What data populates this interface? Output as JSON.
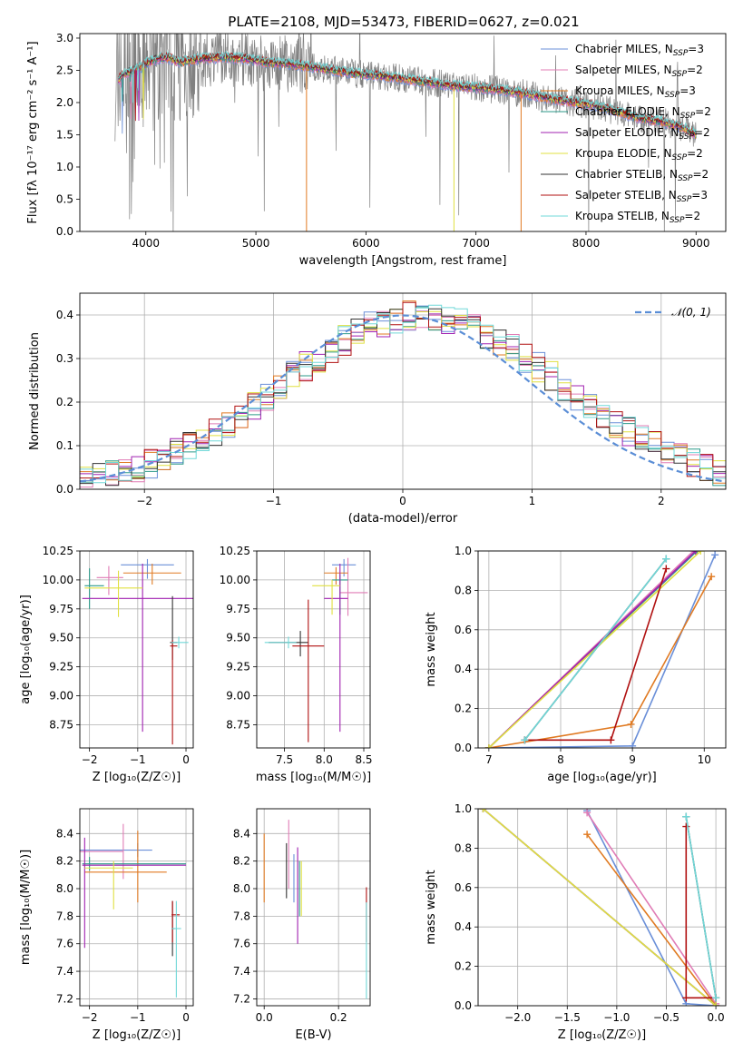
{
  "title": "PLATE=2108, MJD=53473, FIBERID=0627, z=0.021",
  "colors": {
    "chabrier_miles": "#6a8fd8",
    "salpeter_miles": "#e07cb6",
    "kroupa_miles": "#e07a22",
    "chabrier_elodie": "#2c9a8a",
    "salpeter_elodie": "#a020b0",
    "kroupa_elodie": "#e0e040",
    "chabrier_stelib": "#333333",
    "salpeter_stelib": "#b01010",
    "kroupa_stelib": "#70d8d8",
    "data": "#808080",
    "normal": "#5b8ed6"
  },
  "legend": [
    {
      "key": "chabrier_miles",
      "label": "Chabrier MILES, N",
      "sub": "SSP",
      "tail": "=3"
    },
    {
      "key": "salpeter_miles",
      "label": "Salpeter MILES, N",
      "sub": "SSP",
      "tail": "=2"
    },
    {
      "key": "kroupa_miles",
      "label": "Kroupa MILES, N",
      "sub": "SSP",
      "tail": "=3"
    },
    {
      "key": "chabrier_elodie",
      "label": "Chabrier ELODIE, N",
      "sub": "SSP",
      "tail": "=2"
    },
    {
      "key": "salpeter_elodie",
      "label": "Salpeter ELODIE, N",
      "sub": "SSP",
      "tail": "=2"
    },
    {
      "key": "kroupa_elodie",
      "label": "Kroupa ELODIE, N",
      "sub": "SSP",
      "tail": "=2"
    },
    {
      "key": "chabrier_stelib",
      "label": "Chabrier STELIB, N",
      "sub": "SSP",
      "tail": "=2"
    },
    {
      "key": "salpeter_stelib",
      "label": "Salpeter STELIB, N",
      "sub": "SSP",
      "tail": "=3"
    },
    {
      "key": "kroupa_stelib",
      "label": "Kroupa STELIB, N",
      "sub": "SSP",
      "tail": "=2"
    }
  ],
  "chart_data": [
    {
      "id": "spectrum",
      "type": "line",
      "xlabel": "wavelength [Angstrom, rest frame]",
      "ylabel": "Flux [fλ 10⁻¹⁷ erg cm⁻² s⁻¹ A⁻¹]",
      "xlim": [
        3400,
        9270
      ],
      "ylim": [
        0,
        3.07
      ],
      "xticks": [
        4000,
        5000,
        6000,
        7000,
        8000,
        9000
      ],
      "yticks": [
        0.0,
        0.5,
        1.0,
        1.5,
        2.0,
        2.5,
        3.0
      ],
      "continuum": {
        "x": [
          3750,
          3800,
          3900,
          4000,
          4100,
          4200,
          4300,
          4400,
          4500,
          4700,
          4900,
          5100,
          5300,
          5500,
          5700,
          5900,
          6100,
          6300,
          6500,
          6700,
          6900,
          7100,
          7300,
          7500,
          7700,
          7900,
          8100,
          8300,
          8500,
          8700,
          8900,
          9000
        ],
        "y": [
          2.35,
          2.45,
          2.5,
          2.6,
          2.68,
          2.7,
          2.62,
          2.65,
          2.68,
          2.7,
          2.68,
          2.62,
          2.6,
          2.55,
          2.5,
          2.45,
          2.42,
          2.38,
          2.33,
          2.28,
          2.24,
          2.22,
          2.18,
          2.12,
          2.05,
          2.0,
          1.95,
          1.85,
          1.75,
          1.7,
          1.6,
          1.5
        ]
      },
      "data_range": [
        3720,
        9000
      ],
      "model_range": [
        3750,
        9000
      ],
      "model_edge_lines": [
        {
          "key": "kroupa_miles",
          "x": 5460
        },
        {
          "key": "kroupa_miles",
          "x": 7410
        },
        {
          "key": "kroupa_elodie",
          "x": 6800
        }
      ]
    },
    {
      "id": "residuals",
      "type": "histogram",
      "xlabel": "(data-model)/error",
      "ylabel": "Normed distribution",
      "xlim": [
        -2.5,
        2.5
      ],
      "ylim": [
        0,
        0.45
      ],
      "xticks": [
        -2,
        -1,
        0,
        1,
        2
      ],
      "yticks": [
        0.0,
        0.1,
        0.2,
        0.3,
        0.4
      ],
      "bin_width": 0.1,
      "normal_label": "𝒩(0, 1)"
    },
    {
      "id": "age_vs_Z",
      "type": "errorbar",
      "xlabel": "Z [log₁₀(Z/Z☉)]",
      "ylabel": "age  [log₁₀(age/yr)]",
      "xlim": [
        -2.2,
        0.15
      ],
      "ylim": [
        8.55,
        10.25
      ],
      "xticks": [
        -2,
        -1,
        0
      ],
      "yticks": [
        8.75,
        9.0,
        9.25,
        9.5,
        9.75,
        10.0,
        10.25
      ],
      "points": [
        {
          "key": "chabrier_miles",
          "x": -0.8,
          "y": 10.13,
          "xerr": [
            0.55,
            0.55
          ],
          "yerr": [
            0.12,
            0.05
          ]
        },
        {
          "key": "salpeter_miles",
          "x": -1.6,
          "y": 10.02,
          "xerr": [
            0.25,
            0.3
          ],
          "yerr": [
            0.15,
            0.1
          ]
        },
        {
          "key": "kroupa_miles",
          "x": -0.7,
          "y": 10.06,
          "xerr": [
            0.6,
            0.6
          ],
          "yerr": [
            0.1,
            0.08
          ]
        },
        {
          "key": "chabrier_elodie",
          "x": -2.0,
          "y": 9.95,
          "xerr": [
            0.1,
            0.3
          ],
          "yerr": [
            0.2,
            0.15
          ]
        },
        {
          "key": "salpeter_elodie",
          "x": -0.9,
          "y": 9.84,
          "xerr": [
            1.25,
            1.2
          ],
          "yerr": [
            1.15,
            0.3
          ]
        },
        {
          "key": "kroupa_elodie",
          "x": -1.4,
          "y": 9.93,
          "xerr": [
            0.7,
            0.5
          ],
          "yerr": [
            0.25,
            0.15
          ]
        },
        {
          "key": "chabrier_stelib",
          "x": -0.28,
          "y": 9.46,
          "xerr": [
            0.05,
            0.1
          ],
          "yerr": [
            0.15,
            0.4
          ]
        },
        {
          "key": "salpeter_stelib",
          "x": -0.28,
          "y": 9.43,
          "xerr": [
            0.05,
            0.1
          ],
          "yerr": [
            0.85,
            0.05
          ]
        },
        {
          "key": "kroupa_stelib",
          "x": -0.15,
          "y": 9.46,
          "xerr": [
            0.15,
            0.2
          ],
          "yerr": [
            0.05,
            0.05
          ]
        }
      ]
    },
    {
      "id": "age_vs_mass",
      "type": "errorbar",
      "xlabel": "mass [log₁₀(M/M☉)]",
      "ylabel": "",
      "xlim": [
        7.15,
        8.58
      ],
      "ylim": [
        8.55,
        10.25
      ],
      "xticks": [
        7.5,
        8.0,
        8.5
      ],
      "yticks": [
        8.75,
        9.0,
        9.25,
        9.5,
        9.75,
        10.0,
        10.25
      ],
      "points": [
        {
          "key": "chabrier_miles",
          "x": 8.25,
          "y": 10.13,
          "xerr": [
            0.15,
            0.15
          ],
          "yerr": [
            0.1,
            0.05
          ]
        },
        {
          "key": "salpeter_miles",
          "x": 8.3,
          "y": 9.89,
          "xerr": [
            0.1,
            0.25
          ],
          "yerr": [
            0.2,
            0.3
          ]
        },
        {
          "key": "kroupa_miles",
          "x": 8.15,
          "y": 10.06,
          "xerr": [
            0.15,
            0.15
          ],
          "yerr": [
            0.1,
            0.05
          ]
        },
        {
          "key": "chabrier_elodie",
          "x": 8.2,
          "y": 10.0,
          "xerr": [
            0.1,
            0.1
          ],
          "yerr": [
            0.3,
            0.05
          ]
        },
        {
          "key": "salpeter_elodie",
          "x": 8.2,
          "y": 9.84,
          "xerr": [
            0.2,
            0.1
          ],
          "yerr": [
            1.15,
            0.3
          ]
        },
        {
          "key": "kroupa_elodie",
          "x": 8.1,
          "y": 9.95,
          "xerr": [
            0.25,
            0.1
          ],
          "yerr": [
            0.25,
            0.05
          ]
        },
        {
          "key": "chabrier_stelib",
          "x": 7.7,
          "y": 9.46,
          "xerr": [
            0.4,
            0.1
          ],
          "yerr": [
            0.12,
            0.1
          ]
        },
        {
          "key": "salpeter_stelib",
          "x": 7.8,
          "y": 9.43,
          "xerr": [
            0.2,
            0.2
          ],
          "yerr": [
            0.83,
            0.4
          ]
        },
        {
          "key": "kroupa_stelib",
          "x": 7.55,
          "y": 9.46,
          "xerr": [
            0.3,
            0.1
          ],
          "yerr": [
            0.05,
            0.05
          ]
        }
      ]
    },
    {
      "id": "weight_vs_age",
      "type": "line",
      "xlabel": "age  [log₁₀(age/yr)]",
      "ylabel": "mass weight",
      "xlim": [
        6.85,
        10.3
      ],
      "ylim": [
        0,
        1
      ],
      "xticks": [
        7,
        8,
        9,
        10
      ],
      "yticks": [
        0.0,
        0.2,
        0.4,
        0.6,
        0.8,
        1.0
      ],
      "series": [
        {
          "key": "chabrier_miles",
          "x": [
            7.0,
            9.0,
            10.15
          ],
          "y": [
            0.0,
            0.01,
            0.98
          ]
        },
        {
          "key": "salpeter_miles",
          "x": [
            7.0,
            9.85
          ],
          "y": [
            0.0,
            1.0
          ]
        },
        {
          "key": "kroupa_miles",
          "x": [
            7.0,
            8.98,
            10.1
          ],
          "y": [
            0.0,
            0.12,
            0.87
          ]
        },
        {
          "key": "chabrier_elodie",
          "x": [
            7.0,
            9.9
          ],
          "y": [
            0.0,
            1.0
          ]
        },
        {
          "key": "salpeter_elodie",
          "x": [
            7.0,
            9.88
          ],
          "y": [
            0.0,
            1.0
          ]
        },
        {
          "key": "kroupa_elodie",
          "x": [
            7.0,
            9.95
          ],
          "y": [
            0.0,
            1.0
          ]
        },
        {
          "key": "chabrier_stelib",
          "x": [
            7.5,
            9.47
          ],
          "y": [
            0.04,
            0.96
          ]
        },
        {
          "key": "salpeter_stelib",
          "x": [
            7.5,
            8.7,
            9.47
          ],
          "y": [
            0.04,
            0.04,
            0.91
          ]
        },
        {
          "key": "kroupa_stelib",
          "x": [
            7.5,
            9.47
          ],
          "y": [
            0.04,
            0.96
          ]
        }
      ]
    },
    {
      "id": "mass_vs_Z",
      "type": "errorbar",
      "xlabel": "Z [log₁₀(Z/Z☉)]",
      "ylabel": "mass [log₁₀(M/M☉)]",
      "xlim": [
        -2.2,
        0.15
      ],
      "ylim": [
        7.15,
        8.58
      ],
      "xticks": [
        -2,
        -1,
        0
      ],
      "yticks": [
        7.2,
        7.4,
        7.6,
        7.8,
        8.0,
        8.2,
        8.4
      ],
      "points": [
        {
          "key": "chabrier_miles",
          "x": -1.0,
          "y": 8.28,
          "xerr": [
            1.2,
            0.3
          ],
          "yerr": [
            0.05,
            0.05
          ]
        },
        {
          "key": "salpeter_miles",
          "x": -1.3,
          "y": 8.27,
          "xerr": [
            0.9,
            0.0
          ],
          "yerr": [
            0.2,
            0.2
          ]
        },
        {
          "key": "kroupa_miles",
          "x": -1.0,
          "y": 8.12,
          "xerr": [
            1.1,
            0.6
          ],
          "yerr": [
            0.22,
            0.3
          ]
        },
        {
          "key": "chabrier_elodie",
          "x": -2.0,
          "y": 8.18,
          "xerr": [
            0.15,
            2.0
          ],
          "yerr": [
            0.05,
            0.05
          ]
        },
        {
          "key": "salpeter_elodie",
          "x": -2.1,
          "y": 8.17,
          "xerr": [
            0.05,
            2.1
          ],
          "yerr": [
            0.6,
            0.2
          ]
        },
        {
          "key": "kroupa_elodie",
          "x": -1.5,
          "y": 8.15,
          "xerr": [
            0.6,
            0.4
          ],
          "yerr": [
            0.3,
            0.05
          ]
        },
        {
          "key": "chabrier_stelib",
          "x": -0.28,
          "y": 7.71,
          "xerr": [
            0.02,
            0.05
          ],
          "yerr": [
            0.2,
            0.2
          ]
        },
        {
          "key": "salpeter_stelib",
          "x": -0.28,
          "y": 7.81,
          "xerr": [
            0.02,
            0.15
          ],
          "yerr": [
            0.2,
            0.1
          ]
        },
        {
          "key": "kroupa_stelib",
          "x": -0.2,
          "y": 7.71,
          "xerr": [
            0.1,
            0.1
          ],
          "yerr": [
            0.5,
            0.2
          ]
        }
      ]
    },
    {
      "id": "mass_vs_ebv",
      "type": "errorbar",
      "xlabel": "E(B-V)",
      "ylabel": "",
      "xlim": [
        -0.02,
        0.285
      ],
      "ylim": [
        7.15,
        8.58
      ],
      "xticks": [
        0.0,
        0.2
      ],
      "yticks": [
        7.2,
        7.4,
        7.6,
        7.8,
        8.0,
        8.2,
        8.4
      ],
      "points": [
        {
          "key": "chabrier_miles",
          "x": 0.08,
          "y": 8.1,
          "xerr": [
            0,
            0
          ],
          "yerr": [
            0.2,
            0.15
          ]
        },
        {
          "key": "salpeter_miles",
          "x": 0.066,
          "y": 8.2,
          "xerr": [
            0,
            0
          ],
          "yerr": [
            0.2,
            0.3
          ]
        },
        {
          "key": "kroupa_miles",
          "x": 0.0,
          "y": 8.1,
          "xerr": [
            0,
            0
          ],
          "yerr": [
            0.2,
            0.3
          ]
        },
        {
          "key": "chabrier_elodie",
          "x": 0.095,
          "y": 8.0,
          "xerr": [
            0,
            0
          ],
          "yerr": [
            0.2,
            0.2
          ]
        },
        {
          "key": "salpeter_elodie",
          "x": 0.09,
          "y": 7.9,
          "xerr": [
            0,
            0
          ],
          "yerr": [
            0.3,
            0.4
          ]
        },
        {
          "key": "kroupa_elodie",
          "x": 0.1,
          "y": 8.0,
          "xerr": [
            0,
            0
          ],
          "yerr": [
            0.2,
            0.2
          ]
        },
        {
          "key": "chabrier_stelib",
          "x": 0.06,
          "y": 8.13,
          "xerr": [
            0,
            0
          ],
          "yerr": [
            0.2,
            0.2
          ]
        },
        {
          "key": "salpeter_stelib",
          "x": 0.275,
          "y": 7.81,
          "xerr": [
            0,
            0
          ],
          "yerr": [
            0.2,
            0.2
          ]
        },
        {
          "key": "kroupa_stelib",
          "x": 0.275,
          "y": 7.55,
          "xerr": [
            0,
            0
          ],
          "yerr": [
            0.35,
            0.35
          ]
        }
      ]
    },
    {
      "id": "weight_vs_Z",
      "type": "line",
      "xlabel": "Z [log₁₀(Z/Z☉)]",
      "ylabel": "mass weight",
      "xlim": [
        -2.4,
        0.1
      ],
      "ylim": [
        0,
        1
      ],
      "xticks": [
        -2.0,
        -1.5,
        -1.0,
        -0.5,
        0.0
      ],
      "yticks": [
        0.0,
        0.2,
        0.4,
        0.6,
        0.8,
        1.0
      ],
      "series": [
        {
          "key": "chabrier_miles",
          "x": [
            -1.3,
            -0.3,
            0.0
          ],
          "y": [
            0.99,
            0.01,
            0.0
          ]
        },
        {
          "key": "salpeter_miles",
          "x": [
            -1.3,
            0.0
          ],
          "y": [
            0.98,
            0.01
          ]
        },
        {
          "key": "kroupa_miles",
          "x": [
            -1.3,
            0.0
          ],
          "y": [
            0.87,
            0.0
          ]
        },
        {
          "key": "chabrier_elodie",
          "x": [
            -2.35,
            0.0
          ],
          "y": [
            1.0,
            0.0
          ]
        },
        {
          "key": "salpeter_elodie",
          "x": [
            -2.35,
            0.0
          ],
          "y": [
            1.0,
            0.0
          ]
        },
        {
          "key": "kroupa_elodie",
          "x": [
            -2.35,
            0.0
          ],
          "y": [
            1.0,
            0.0
          ]
        },
        {
          "key": "chabrier_stelib",
          "x": [
            -0.3,
            0.0
          ],
          "y": [
            0.96,
            0.04
          ]
        },
        {
          "key": "salpeter_stelib",
          "x": [
            -0.3,
            -0.3,
            0.0
          ],
          "y": [
            0.91,
            0.04,
            0.04
          ]
        },
        {
          "key": "kroupa_stelib",
          "x": [
            -0.3,
            0.0
          ],
          "y": [
            0.96,
            0.04
          ]
        }
      ]
    }
  ]
}
